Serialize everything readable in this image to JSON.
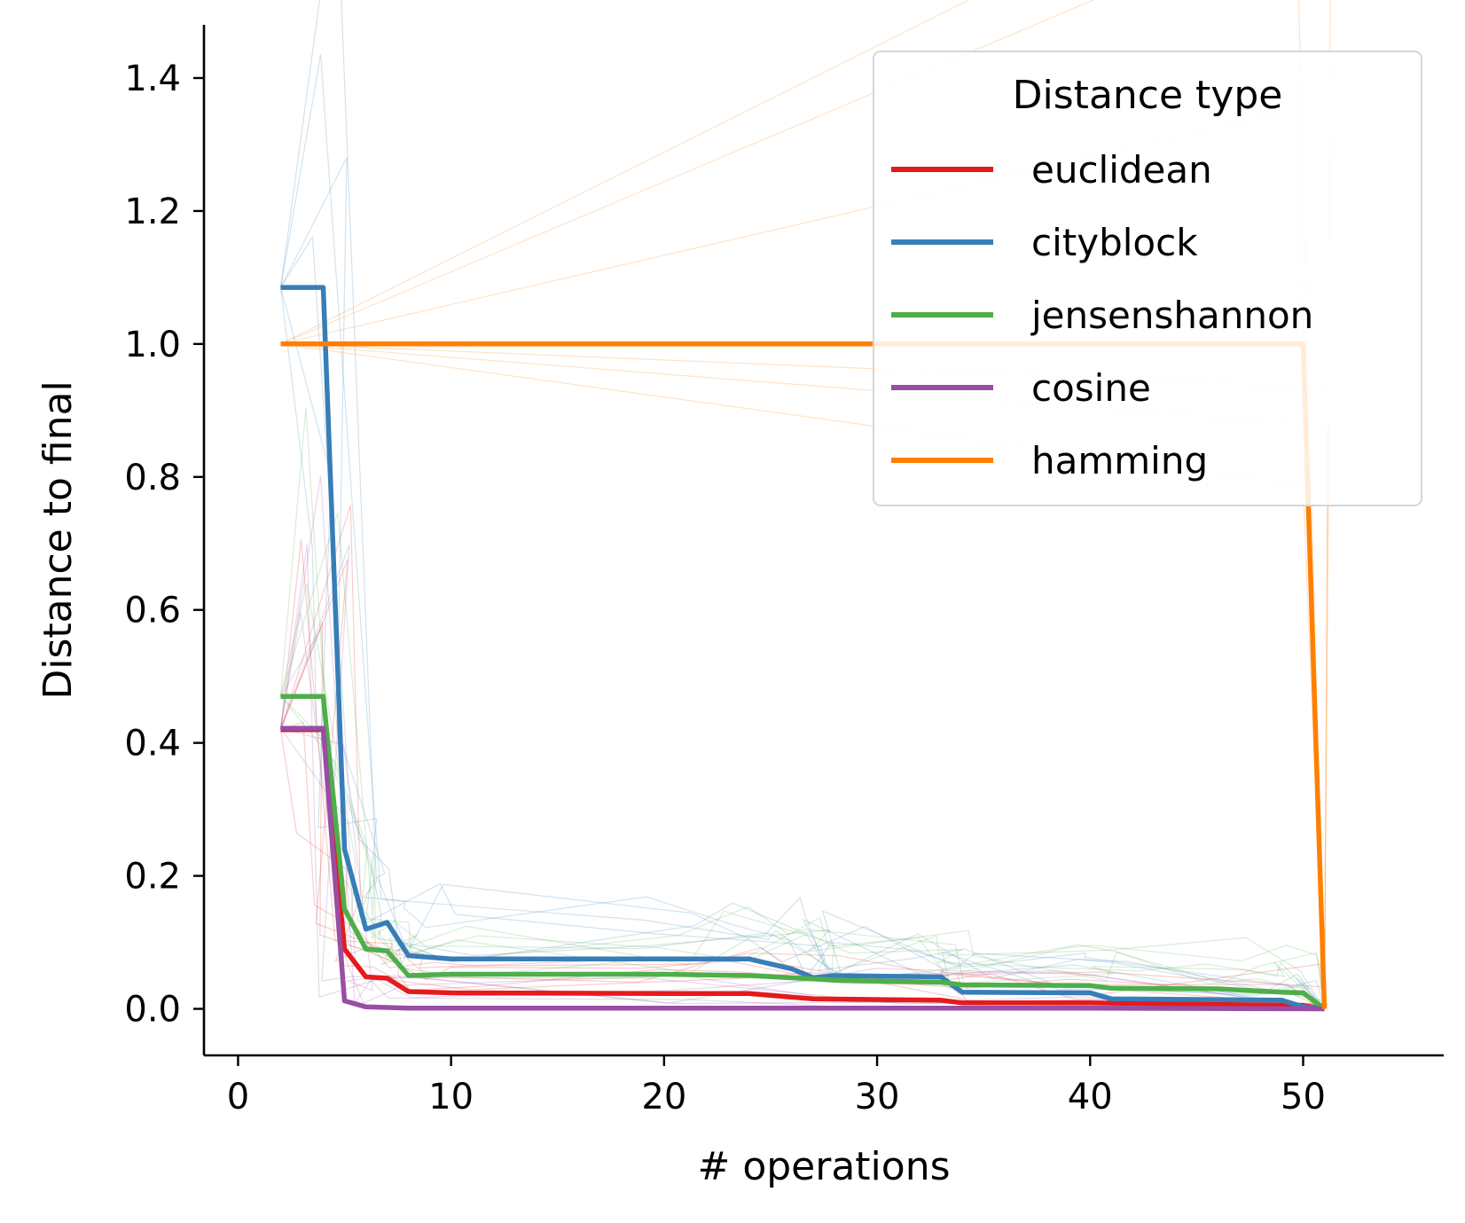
{
  "chart_data": {
    "type": "line",
    "title": "",
    "xlabel": "# operations",
    "ylabel": "Distance to final",
    "xlim": [
      -1.6,
      56.6
    ],
    "ylim": [
      -0.07,
      1.48
    ],
    "xticks": [
      0,
      10,
      20,
      30,
      40,
      50
    ],
    "yticks": [
      0.0,
      0.2,
      0.4,
      0.6,
      0.8,
      1.0,
      1.2,
      1.4
    ],
    "x_tick_labels": [
      "0",
      "10",
      "20",
      "30",
      "40",
      "50"
    ],
    "y_tick_labels": [
      "0.0",
      "0.2",
      "0.4",
      "0.6",
      "0.8",
      "1.0",
      "1.2",
      "1.4"
    ],
    "grid": false,
    "legend": {
      "title": "Distance type",
      "position": "top-right",
      "entries": [
        "euclidean",
        "cityblock",
        "jensenshannon",
        "cosine",
        "hamming"
      ]
    },
    "series": [
      {
        "name": "euclidean",
        "color": "#e41a1c",
        "points": [
          [
            2,
            0.42
          ],
          [
            4,
            0.42
          ],
          [
            5,
            0.09
          ],
          [
            6,
            0.048
          ],
          [
            7,
            0.046
          ],
          [
            8,
            0.026
          ],
          [
            10,
            0.024
          ],
          [
            20,
            0.023
          ],
          [
            24,
            0.023
          ],
          [
            27,
            0.015
          ],
          [
            33,
            0.013
          ],
          [
            34,
            0.009
          ],
          [
            40,
            0.009
          ],
          [
            50,
            0.005
          ],
          [
            51,
            0.0
          ]
        ]
      },
      {
        "name": "cityblock",
        "color": "#377eb8",
        "points": [
          [
            2,
            1.085
          ],
          [
            4,
            1.085
          ],
          [
            5,
            0.24
          ],
          [
            6,
            0.12
          ],
          [
            7,
            0.13
          ],
          [
            8,
            0.08
          ],
          [
            10,
            0.075
          ],
          [
            20,
            0.075
          ],
          [
            24,
            0.075
          ],
          [
            26,
            0.06
          ],
          [
            27,
            0.047
          ],
          [
            28,
            0.05
          ],
          [
            33,
            0.048
          ],
          [
            34,
            0.025
          ],
          [
            40,
            0.024
          ],
          [
            41,
            0.015
          ],
          [
            49,
            0.013
          ],
          [
            50,
            0.003
          ],
          [
            51,
            0.0
          ]
        ]
      },
      {
        "name": "jensenshannon",
        "color": "#4daf4a",
        "points": [
          [
            2,
            0.47
          ],
          [
            4,
            0.47
          ],
          [
            5,
            0.15
          ],
          [
            6,
            0.09
          ],
          [
            7,
            0.087
          ],
          [
            8,
            0.05
          ],
          [
            10,
            0.052
          ],
          [
            20,
            0.052
          ],
          [
            24,
            0.05
          ],
          [
            27,
            0.045
          ],
          [
            28,
            0.043
          ],
          [
            33,
            0.04
          ],
          [
            34,
            0.036
          ],
          [
            40,
            0.035
          ],
          [
            41,
            0.031
          ],
          [
            46,
            0.03
          ],
          [
            49,
            0.025
          ],
          [
            50,
            0.024
          ],
          [
            51,
            0.0
          ]
        ]
      },
      {
        "name": "cosine",
        "color": "#984ea3",
        "points": [
          [
            2,
            0.422
          ],
          [
            4,
            0.422
          ],
          [
            5,
            0.012
          ],
          [
            6,
            0.003
          ],
          [
            8,
            0.001
          ],
          [
            20,
            0.001
          ],
          [
            30,
            0.001
          ],
          [
            40,
            0.001
          ],
          [
            51,
            0.0
          ]
        ]
      },
      {
        "name": "hamming",
        "color": "#ff7f00",
        "points": [
          [
            2,
            1.0
          ],
          [
            50,
            1.0
          ],
          [
            51,
            0.0
          ]
        ]
      }
    ]
  }
}
